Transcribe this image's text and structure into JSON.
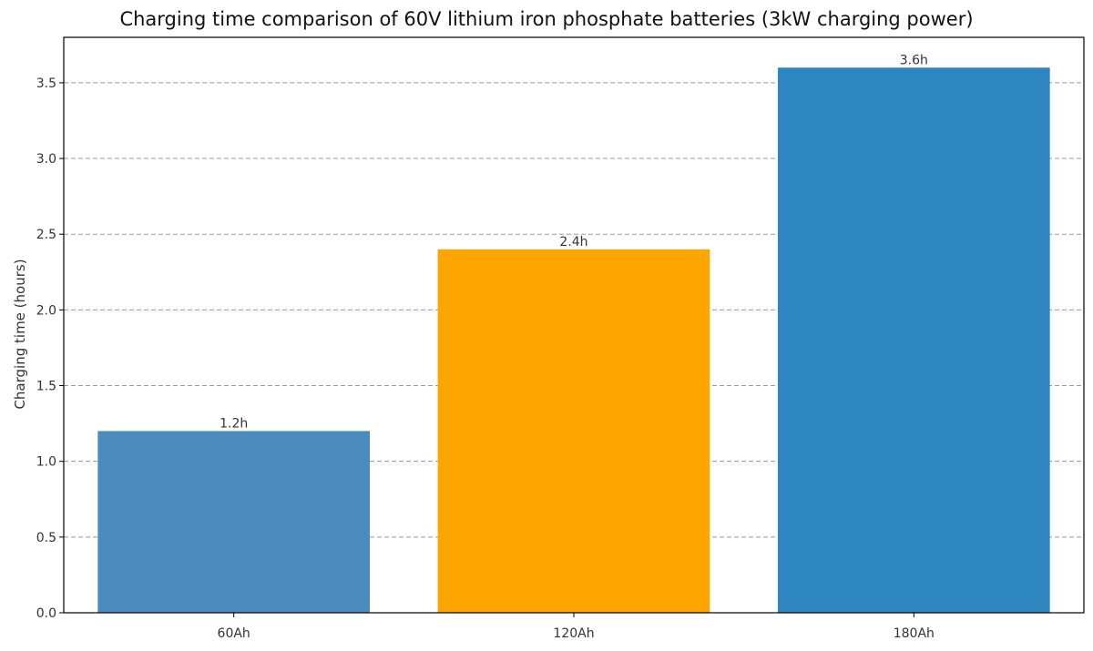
{
  "chart_data": {
    "type": "bar",
    "title": "Charging time comparison of 60V lithium iron phosphate batteries (3kW charging power)",
    "xlabel": "",
    "ylabel": "Charging time (hours)",
    "categories": [
      "60Ah",
      "120Ah",
      "180Ah"
    ],
    "values": [
      1.2,
      2.4,
      3.6
    ],
    "data_labels": [
      "1.2h",
      "2.4h",
      "3.6h"
    ],
    "colors": [
      "#4b8bbe",
      "#ffa500",
      "#2e86c1"
    ],
    "ylim": [
      0,
      3.8
    ],
    "yticks": [
      0.0,
      0.5,
      1.0,
      1.5,
      2.0,
      2.5,
      3.0,
      3.5
    ],
    "ytick_labels": [
      "0.0",
      "0.5",
      "1.0",
      "1.5",
      "2.0",
      "2.5",
      "3.0",
      "3.5"
    ],
    "grid": "y-dashed",
    "legend": "none"
  }
}
